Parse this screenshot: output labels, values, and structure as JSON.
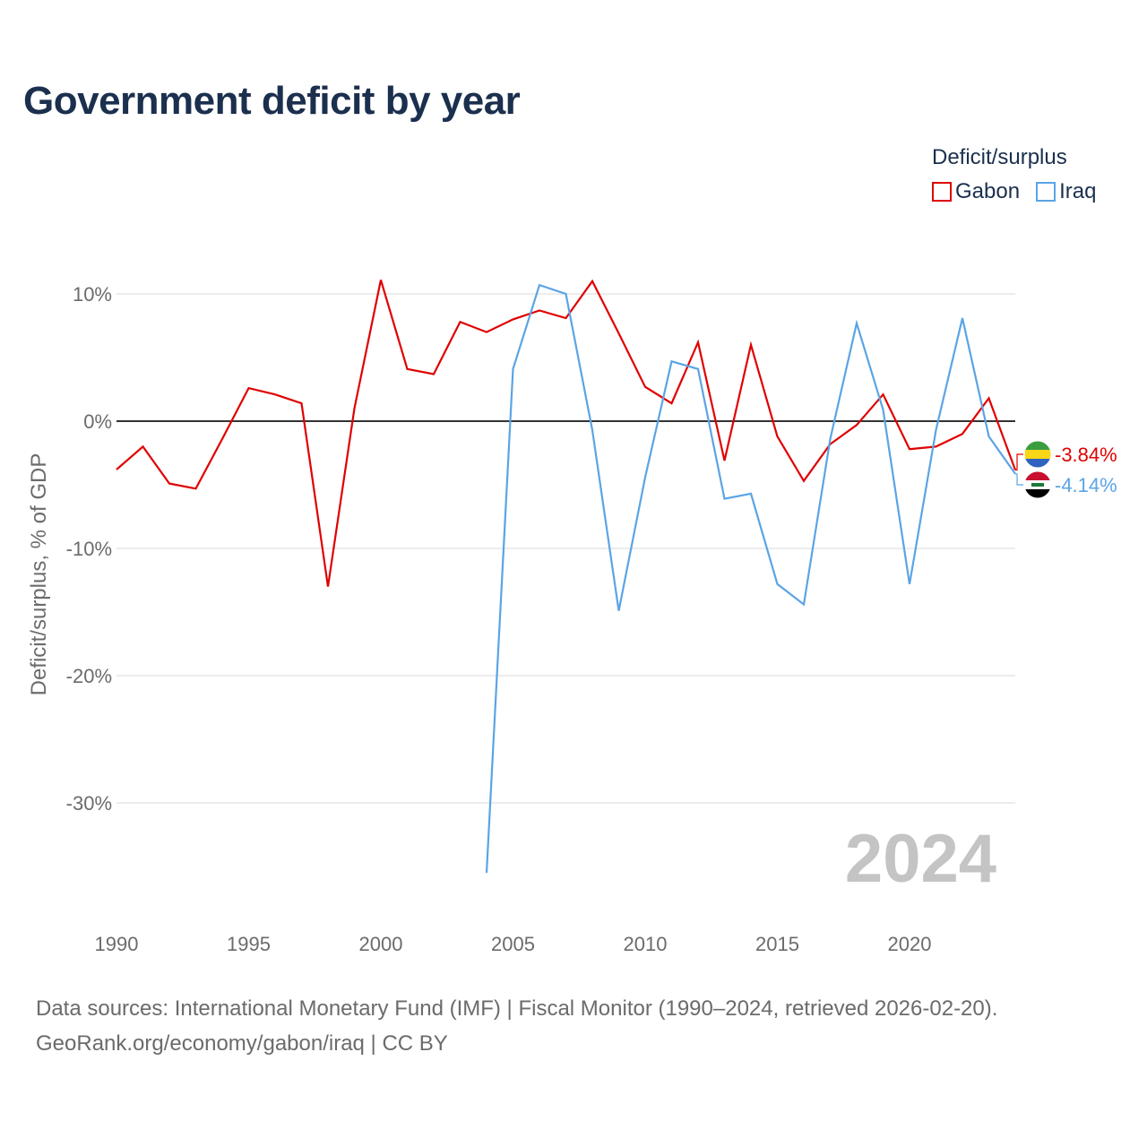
{
  "title": "Government deficit by year",
  "legend": {
    "title": "Deficit/surplus",
    "items": [
      {
        "name": "Gabon",
        "color": "#e00000"
      },
      {
        "name": "Iraq",
        "color": "#5ba4e5"
      }
    ]
  },
  "year_watermark": "2024",
  "footer": {
    "source": "Data sources: International Monetary Fund (IMF) | Fiscal Monitor (1990–2024, retrieved 2026-02-20).",
    "credit": "GeoRank.org/economy/gabon/iraq | CC BY"
  },
  "chart_data": {
    "type": "line",
    "title": "Government deficit by year",
    "xlabel": "",
    "ylabel": "Deficit/surplus, % of GDP",
    "xlim": [
      1990,
      2024
    ],
    "ylim": [
      -38,
      14
    ],
    "x_ticks": [
      1990,
      1995,
      2000,
      2005,
      2010,
      2015,
      2020
    ],
    "x_tick_labels": [
      "1990",
      "1995",
      "2000",
      "2005",
      "2010",
      "2015",
      "2020"
    ],
    "y_ticks": [
      10,
      0,
      -10,
      -20,
      -30
    ],
    "y_tick_labels": [
      "10%",
      "0%",
      "-10%",
      "-20%",
      "-30%"
    ],
    "grid": true,
    "legend_position": "top-right",
    "series": [
      {
        "name": "Gabon",
        "color": "#e00000",
        "end_label": "-3.84%",
        "flag": "gabon-flag",
        "x": [
          1990,
          1991,
          1992,
          1993,
          1994,
          1995,
          1996,
          1997,
          1998,
          1999,
          2000,
          2001,
          2002,
          2003,
          2004,
          2005,
          2006,
          2007,
          2008,
          2009,
          2010,
          2011,
          2012,
          2013,
          2014,
          2015,
          2016,
          2017,
          2018,
          2019,
          2020,
          2021,
          2022,
          2023,
          2024
        ],
        "values": [
          -3.8,
          -2.0,
          -4.9,
          -5.3,
          -1.4,
          2.6,
          2.1,
          1.4,
          -13.0,
          1.0,
          11.1,
          4.1,
          3.7,
          7.8,
          7.0,
          8.0,
          8.7,
          8.1,
          11.0,
          6.9,
          2.7,
          1.4,
          6.2,
          -3.1,
          6.0,
          -1.2,
          -4.7,
          -1.8,
          -0.3,
          2.1,
          -2.2,
          -2.0,
          -1.0,
          1.8,
          -3.84
        ]
      },
      {
        "name": "Iraq",
        "color": "#5ba4e5",
        "end_label": "-4.14%",
        "flag": "iraq-flag",
        "x": [
          2004,
          2005,
          2006,
          2007,
          2008,
          2009,
          2010,
          2011,
          2012,
          2013,
          2014,
          2015,
          2016,
          2017,
          2018,
          2019,
          2020,
          2021,
          2022,
          2023,
          2024
        ],
        "values": [
          -35.5,
          4.1,
          10.7,
          10.0,
          -0.7,
          -14.9,
          -4.4,
          4.7,
          4.1,
          -6.1,
          -5.7,
          -12.8,
          -14.4,
          -1.4,
          7.7,
          0.9,
          -12.8,
          -0.7,
          8.1,
          -1.2,
          -4.14
        ]
      }
    ]
  }
}
